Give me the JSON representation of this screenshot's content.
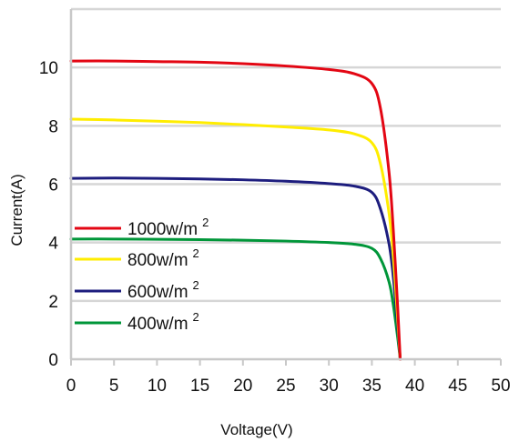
{
  "chart_data": {
    "type": "line",
    "title": "",
    "xlabel": "Voltage(V)",
    "ylabel": "Current(A)",
    "xlim": [
      0,
      50
    ],
    "ylim": [
      0,
      12
    ],
    "xticks": [
      "0",
      "5",
      "10",
      "15",
      "20",
      "25",
      "30",
      "35",
      "40",
      "45",
      "50"
    ],
    "yticks": [
      "0",
      "2",
      "4",
      "6",
      "8",
      "10"
    ],
    "grid": "horizontal",
    "legend_position": "left-middle",
    "series": [
      {
        "name": "1000w/m",
        "name_sup": "2",
        "color": "#e30613",
        "x": [
          0,
          5,
          10,
          15,
          20,
          25,
          30,
          33,
          35,
          36,
          37,
          37.5,
          38,
          38.3
        ],
        "y": [
          10.22,
          10.22,
          10.2,
          10.18,
          10.13,
          10.05,
          9.93,
          9.78,
          9.45,
          8.6,
          6.4,
          4.4,
          1.8,
          0
        ]
      },
      {
        "name": "800w/m",
        "name_sup": "2",
        "color": "#ffed00",
        "x": [
          0,
          5,
          10,
          15,
          20,
          25,
          30,
          33,
          35,
          36,
          37,
          37.5,
          38,
          38.3
        ],
        "y": [
          8.23,
          8.2,
          8.16,
          8.11,
          8.04,
          7.96,
          7.86,
          7.72,
          7.42,
          6.7,
          5.0,
          3.5,
          1.4,
          0
        ]
      },
      {
        "name": "600w/m",
        "name_sup": "2",
        "color": "#1d1d7e",
        "x": [
          0,
          5,
          10,
          15,
          20,
          25,
          30,
          33,
          35,
          36,
          37,
          37.5,
          38,
          38.3
        ],
        "y": [
          6.2,
          6.21,
          6.2,
          6.18,
          6.15,
          6.1,
          6.02,
          5.93,
          5.72,
          5.15,
          3.95,
          2.8,
          1.1,
          0
        ]
      },
      {
        "name": "400w/m",
        "name_sup": "2",
        "color": "#009639",
        "x": [
          0,
          5,
          10,
          15,
          20,
          25,
          30,
          33,
          35,
          36,
          37,
          37.5,
          38,
          38.3
        ],
        "y": [
          4.12,
          4.12,
          4.11,
          4.1,
          4.08,
          4.05,
          4.0,
          3.94,
          3.8,
          3.45,
          2.65,
          1.85,
          0.75,
          0
        ]
      }
    ]
  }
}
